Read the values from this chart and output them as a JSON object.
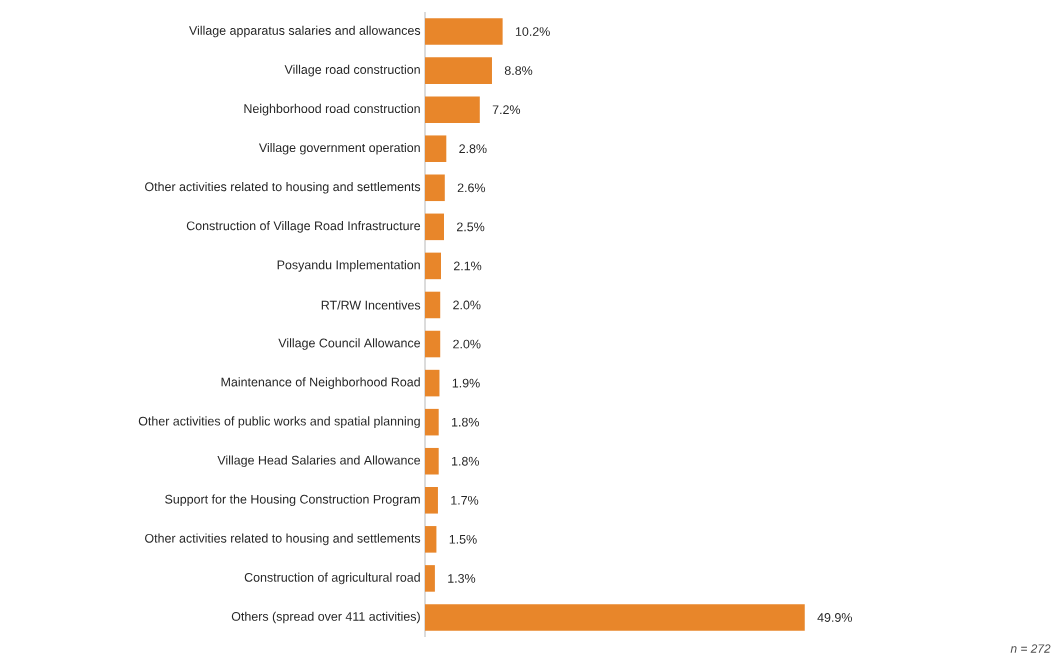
{
  "chart_data": {
    "type": "bar",
    "orientation": "horizontal",
    "categories": [
      "Village apparatus salaries and allowances",
      "Village road construction",
      "Neighborhood road construction",
      "Village government operation",
      "Other activities related to housing and settlements",
      "Construction of Village Road Infrastructure",
      "Posyandu Implementation",
      "RT/RW Incentives",
      "Village Council Allowance",
      "Maintenance of Neighborhood Road",
      "Other activities of public works and spatial planning",
      "Village Head Salaries and Allowance",
      "Support for the Housing Construction Program",
      "Other activities related to housing and settlements",
      "Construction of agricultural road",
      "Others (spread over 411 activities)"
    ],
    "values": [
      10.2,
      8.8,
      7.2,
      2.8,
      2.6,
      2.5,
      2.1,
      2.0,
      2.0,
      1.9,
      1.8,
      1.8,
      1.7,
      1.5,
      1.3,
      49.9
    ],
    "value_labels": [
      "10.2%",
      "8.8%",
      "7.2%",
      "2.8%",
      "2.6%",
      "2.5%",
      "2.1%",
      "2.0%",
      "2.0%",
      "1.9%",
      "1.8%",
      "1.8%",
      "1.7%",
      "1.5%",
      "1.3%",
      "49.9%"
    ],
    "color": "#e8862a",
    "annotations": [
      "n = 272"
    ]
  }
}
